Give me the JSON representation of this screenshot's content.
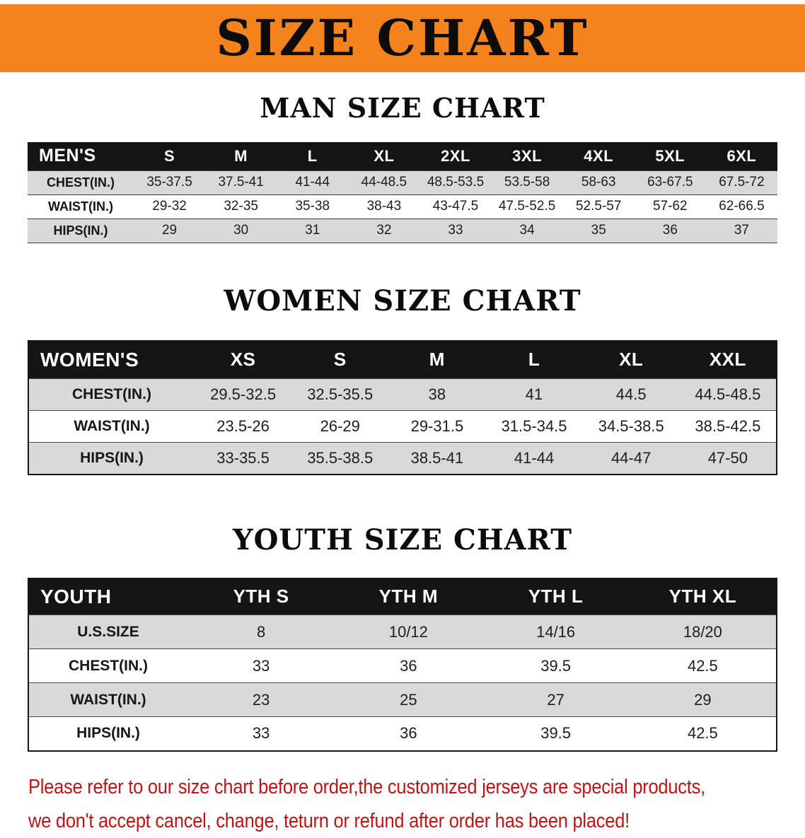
{
  "banner": {
    "title": "SIZE CHART"
  },
  "colors": {
    "banner_bg": "#F5831D",
    "table_header_bg": "#141414",
    "row_alt_bg": "#D9D9D9",
    "disclaimer_red": "#C11414"
  },
  "chart_data": [
    {
      "type": "table",
      "title": "MAN SIZE CHART",
      "columns": [
        "MEN'S",
        "S",
        "M",
        "L",
        "XL",
        "2XL",
        "3XL",
        "4XL",
        "5XL",
        "6XL"
      ],
      "rows": [
        [
          "CHEST(IN.)",
          "35-37.5",
          "37.5-41",
          "41-44",
          "44-48.5",
          "48.5-53.5",
          "53.5-58",
          "58-63",
          "63-67.5",
          "67.5-72"
        ],
        [
          "WAIST(IN.)",
          "29-32",
          "32-35",
          "35-38",
          "38-43",
          "43-47.5",
          "47.5-52.5",
          "52.5-57",
          "57-62",
          "62-66.5"
        ],
        [
          "HIPS(IN.)",
          "29",
          "30",
          "31",
          "32",
          "33",
          "34",
          "35",
          "36",
          "37"
        ]
      ]
    },
    {
      "type": "table",
      "title": "WOMEN SIZE CHART",
      "columns": [
        "WOMEN'S",
        "XS",
        "S",
        "M",
        "L",
        "XL",
        "XXL"
      ],
      "rows": [
        [
          "CHEST(IN.)",
          "29.5-32.5",
          "32.5-35.5",
          "38",
          "41",
          "44.5",
          "44.5-48.5"
        ],
        [
          "WAIST(IN.)",
          "23.5-26",
          "26-29",
          "29-31.5",
          "31.5-34.5",
          "34.5-38.5",
          "38.5-42.5"
        ],
        [
          "HIPS(IN.)",
          "33-35.5",
          "35.5-38.5",
          "38.5-41",
          "41-44",
          "44-47",
          "47-50"
        ]
      ]
    },
    {
      "type": "table",
      "title": "YOUTH SIZE CHART",
      "columns": [
        "YOUTH",
        "YTH S",
        "YTH M",
        "YTH L",
        "YTH XL"
      ],
      "rows": [
        [
          "U.S.SIZE",
          "8",
          "10/12",
          "14/16",
          "18/20"
        ],
        [
          "CHEST(IN.)",
          "33",
          "36",
          "39.5",
          "42.5"
        ],
        [
          "WAIST(IN.)",
          "23",
          "25",
          "27",
          "29"
        ],
        [
          "HIPS(IN.)",
          "33",
          "36",
          "39.5",
          "42.5"
        ]
      ]
    }
  ],
  "disclaimer": {
    "line1": "Please refer to our size chart before order,the customized jerseys are special products,",
    "line2": "we don't accept cancel, change, teturn or refund after order has been placed!"
  }
}
